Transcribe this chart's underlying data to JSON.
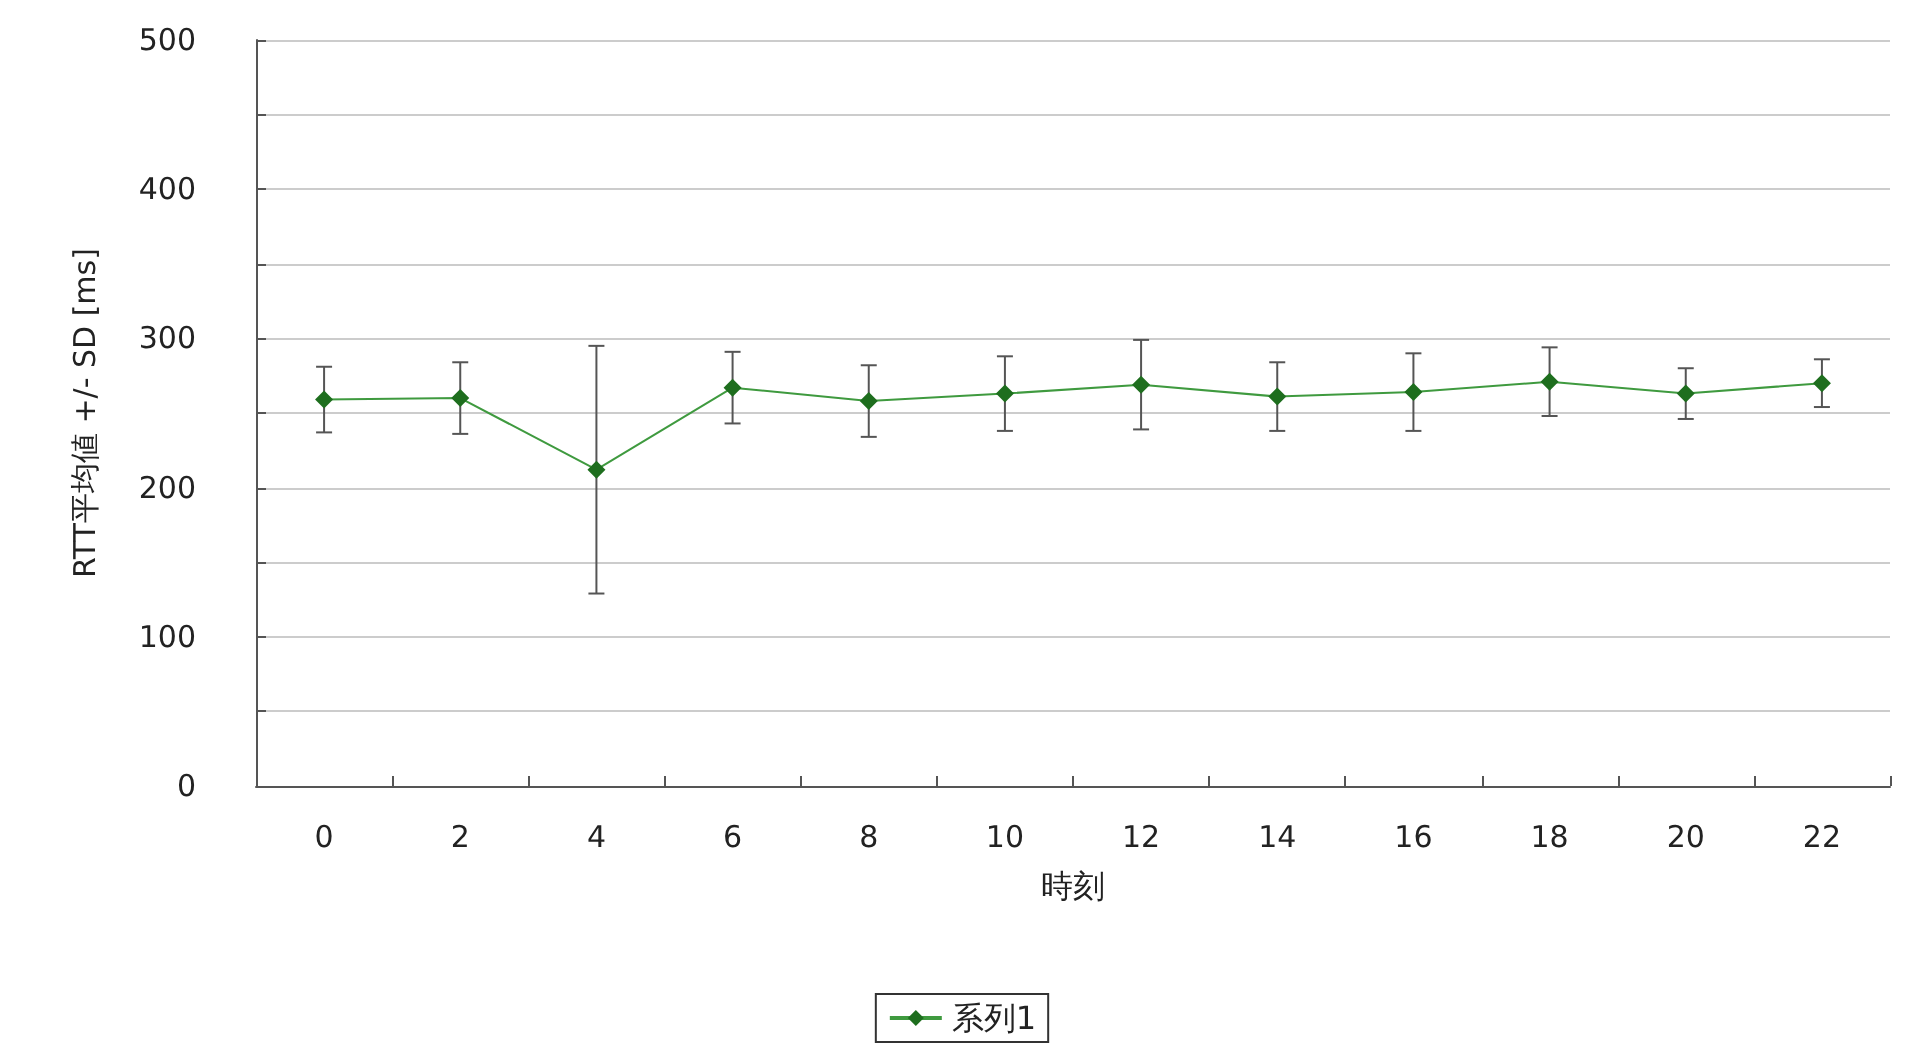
{
  "chart_data": {
    "type": "line",
    "xlabel": "時刻",
    "ylabel": "RTT平均値 +/- SD [ms]",
    "categories": [
      "0",
      "2",
      "4",
      "6",
      "8",
      "10",
      "12",
      "14",
      "16",
      "18",
      "20",
      "22"
    ],
    "series": [
      {
        "name": "系列1",
        "color": "#1e6e1e",
        "values": [
          259,
          260,
          212,
          267,
          258,
          263,
          269,
          261,
          264,
          271,
          263,
          270
        ],
        "errors": [
          22,
          24,
          83,
          24,
          24,
          25,
          30,
          23,
          26,
          23,
          17,
          16
        ]
      }
    ],
    "ylim": [
      0,
      500
    ],
    "yticks": [
      0,
      {
        "value": 50,
        "label": null
      },
      100,
      {
        "value": 150,
        "label": null
      },
      200,
      {
        "value": 250,
        "label": null
      },
      300,
      {
        "value": 350,
        "label": null
      },
      400,
      {
        "value": 450,
        "label": null
      },
      500
    ],
    "grid": "y",
    "legend": "bottom",
    "marker": "diamond",
    "line_style": "solid"
  }
}
